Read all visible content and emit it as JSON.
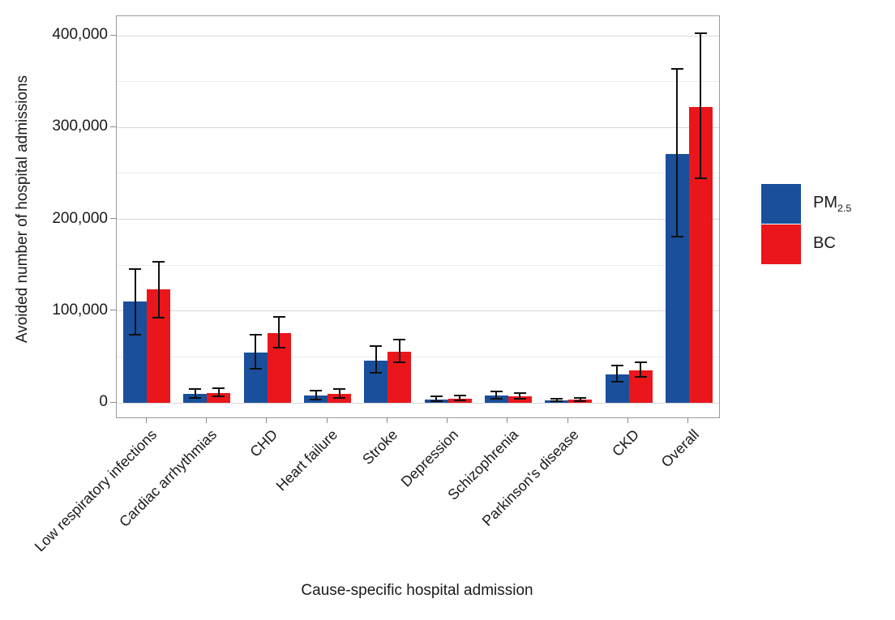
{
  "chart_data": {
    "type": "bar",
    "title": "",
    "xlabel": "Cause-specific hospital admission",
    "ylabel": "Avoided number of hospital admissions",
    "categories": [
      "Low respiratory infections",
      "Cardiac arrhythmias",
      "CHD",
      "Heart failure",
      "Stroke",
      "Depression",
      "Schizophrenia",
      "Parkinson's disease",
      "CKD",
      "Overall"
    ],
    "series": [
      {
        "name": "PM2.5",
        "color": "#1A4F9C",
        "values": [
          110000,
          10000,
          55000,
          8000,
          46000,
          3500,
          8000,
          2900,
          31000,
          271000
        ],
        "ci_low": [
          74000,
          5000,
          37000,
          3500,
          33000,
          1500,
          4700,
          1500,
          23000,
          181000
        ],
        "ci_high": [
          146000,
          15000,
          74000,
          13500,
          62000,
          7000,
          12000,
          4400,
          41000,
          364000
        ]
      },
      {
        "name": "BC",
        "color": "#EA161B",
        "values": [
          124000,
          11000,
          76000,
          9500,
          56000,
          4700,
          7300,
          3500,
          35000,
          322000
        ],
        "ci_low": [
          93000,
          7000,
          60000,
          5000,
          44000,
          2400,
          4400,
          2000,
          28000,
          245000
        ],
        "ci_high": [
          154000,
          16000,
          94000,
          15000,
          69000,
          8200,
          10600,
          5300,
          44000,
          403000
        ]
      }
    ],
    "ylim": [
      -16000,
      421000
    ],
    "yticks": [
      0,
      100000,
      200000,
      300000,
      400000
    ],
    "ytick_labels": [
      "0",
      "100,000",
      "200,000",
      "300,000",
      "400,000"
    ],
    "y_minor_ticks": [
      50000,
      150000,
      250000,
      350000
    ],
    "grid": true,
    "legend_position": "right",
    "error_bars": true
  },
  "legend": {
    "items": [
      {
        "main": "PM",
        "sub": "2.5"
      },
      {
        "main": "BC",
        "sub": ""
      }
    ]
  }
}
